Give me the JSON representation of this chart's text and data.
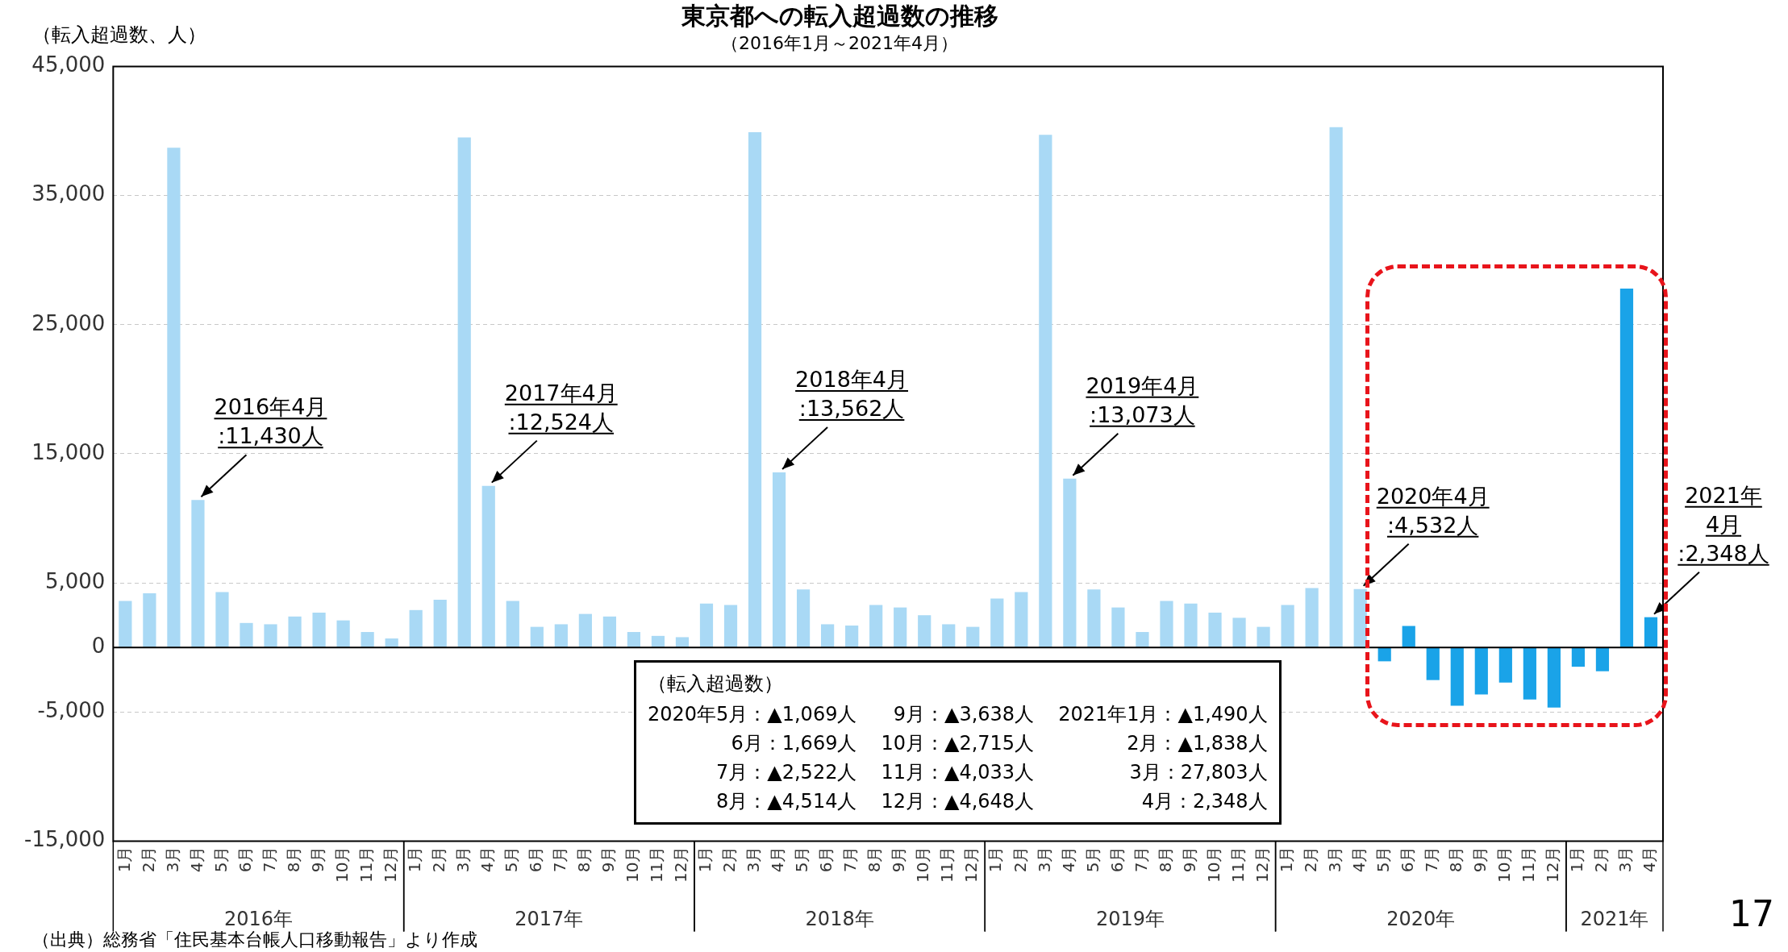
{
  "chart_data": {
    "type": "bar",
    "title": "東京都への転入超過数の推移",
    "subtitle": "（2016年1月～2021年4月）",
    "ylabel": "（転入超過数、人）",
    "categories": [
      "1月",
      "2月",
      "3月",
      "4月",
      "5月",
      "6月",
      "7月",
      "8月",
      "9月",
      "10月",
      "11月",
      "12月",
      "1月",
      "2月",
      "3月",
      "4月",
      "5月",
      "6月",
      "7月",
      "8月",
      "9月",
      "10月",
      "11月",
      "12月",
      "1月",
      "2月",
      "3月",
      "4月",
      "5月",
      "6月",
      "7月",
      "8月",
      "9月",
      "10月",
      "11月",
      "12月",
      "1月",
      "2月",
      "3月",
      "4月",
      "5月",
      "6月",
      "7月",
      "8月",
      "9月",
      "10月",
      "11月",
      "12月",
      "1月",
      "2月",
      "3月",
      "4月",
      "5月",
      "6月",
      "7月",
      "8月",
      "9月",
      "10月",
      "11月",
      "12月",
      "1月",
      "2月",
      "3月",
      "4月"
    ],
    "values": [
      3600,
      4200,
      38700,
      11430,
      4300,
      1900,
      1800,
      2400,
      2700,
      2100,
      1200,
      700,
      2900,
      3700,
      39500,
      12524,
      3600,
      1600,
      1800,
      2600,
      2400,
      1200,
      900,
      800,
      3400,
      3300,
      39900,
      13562,
      4500,
      1800,
      1700,
      3300,
      3100,
      2500,
      1800,
      1600,
      3800,
      4300,
      39700,
      13073,
      4500,
      3100,
      1200,
      3600,
      3400,
      2700,
      2300,
      1600,
      3300,
      4600,
      40300,
      4532,
      -1069,
      1669,
      -2522,
      -4514,
      -3638,
      -2715,
      -4033,
      -4648,
      -1490,
      -1838,
      27803,
      2348
    ],
    "colors": [
      "#a9d9f5",
      "#a9d9f5",
      "#a9d9f5",
      "#a9d9f5",
      "#a9d9f5",
      "#a9d9f5",
      "#a9d9f5",
      "#a9d9f5",
      "#a9d9f5",
      "#a9d9f5",
      "#a9d9f5",
      "#a9d9f5",
      "#a9d9f5",
      "#a9d9f5",
      "#a9d9f5",
      "#a9d9f5",
      "#a9d9f5",
      "#a9d9f5",
      "#a9d9f5",
      "#a9d9f5",
      "#a9d9f5",
      "#a9d9f5",
      "#a9d9f5",
      "#a9d9f5",
      "#a9d9f5",
      "#a9d9f5",
      "#a9d9f5",
      "#a9d9f5",
      "#a9d9f5",
      "#a9d9f5",
      "#a9d9f5",
      "#a9d9f5",
      "#a9d9f5",
      "#a9d9f5",
      "#a9d9f5",
      "#a9d9f5",
      "#a9d9f5",
      "#a9d9f5",
      "#a9d9f5",
      "#a9d9f5",
      "#a9d9f5",
      "#a9d9f5",
      "#a9d9f5",
      "#a9d9f5",
      "#a9d9f5",
      "#a9d9f5",
      "#a9d9f5",
      "#a9d9f5",
      "#a9d9f5",
      "#a9d9f5",
      "#a9d9f5",
      "#a9d9f5",
      "#1aa3e8",
      "#1aa3e8",
      "#1aa3e8",
      "#1aa3e8",
      "#1aa3e8",
      "#1aa3e8",
      "#1aa3e8",
      "#1aa3e8",
      "#1aa3e8",
      "#1aa3e8",
      "#1aa3e8",
      "#1aa3e8"
    ],
    "value_labels": [
      null,
      null,
      null,
      "2016年4月\n:11,430人",
      null,
      null,
      null,
      null,
      null,
      null,
      null,
      null,
      null,
      null,
      null,
      "2017年4月\n:12,524人",
      null,
      null,
      null,
      null,
      null,
      null,
      null,
      null,
      null,
      null,
      null,
      "2018年4月\n:13,562人",
      null,
      null,
      null,
      null,
      null,
      null,
      null,
      null,
      null,
      null,
      null,
      "2019年4月\n:13,073人",
      null,
      null,
      null,
      null,
      null,
      null,
      null,
      null,
      null,
      null,
      null,
      "2020年4月\n:4,532人",
      null,
      null,
      null,
      null,
      null,
      null,
      null,
      null,
      null,
      null,
      null,
      "2021年\n4月\n:2,348人"
    ],
    "ylim": [
      -15000,
      45000
    ],
    "yticks": [
      {
        "value": 45000,
        "label": "45,000"
      },
      {
        "value": 35000,
        "label": "35,000"
      },
      {
        "value": 25000,
        "label": "25,000"
      },
      {
        "value": 15000,
        "label": "15,000"
      },
      {
        "value": 5000,
        "label": "5,000"
      },
      0,
      {
        "value": -5000,
        "label": "-5,000"
      },
      {
        "value": -15000,
        "label": "-15,000"
      }
    ],
    "grid": "y",
    "annotations": [
      "（出典）総務省「住民基本台帳人口移動報告」より作成",
      "17",
      "2016年",
      "2017年",
      "2018年",
      "2019年",
      "2020年",
      "2021年",
      "（転入超過数）",
      "2020年5月：▲1,069人",
      "6月：1,669人",
      "7月：▲2,522人",
      "8月：▲4,514人",
      "9月：▲3,638人",
      "10月：▲2,715人",
      "11月：▲4,033人",
      "12月：▲4,648人",
      "2021年1月：▲1,490人",
      "2月：▲1,838人",
      "3月：27,803人",
      "4月：2,348人"
    ]
  }
}
